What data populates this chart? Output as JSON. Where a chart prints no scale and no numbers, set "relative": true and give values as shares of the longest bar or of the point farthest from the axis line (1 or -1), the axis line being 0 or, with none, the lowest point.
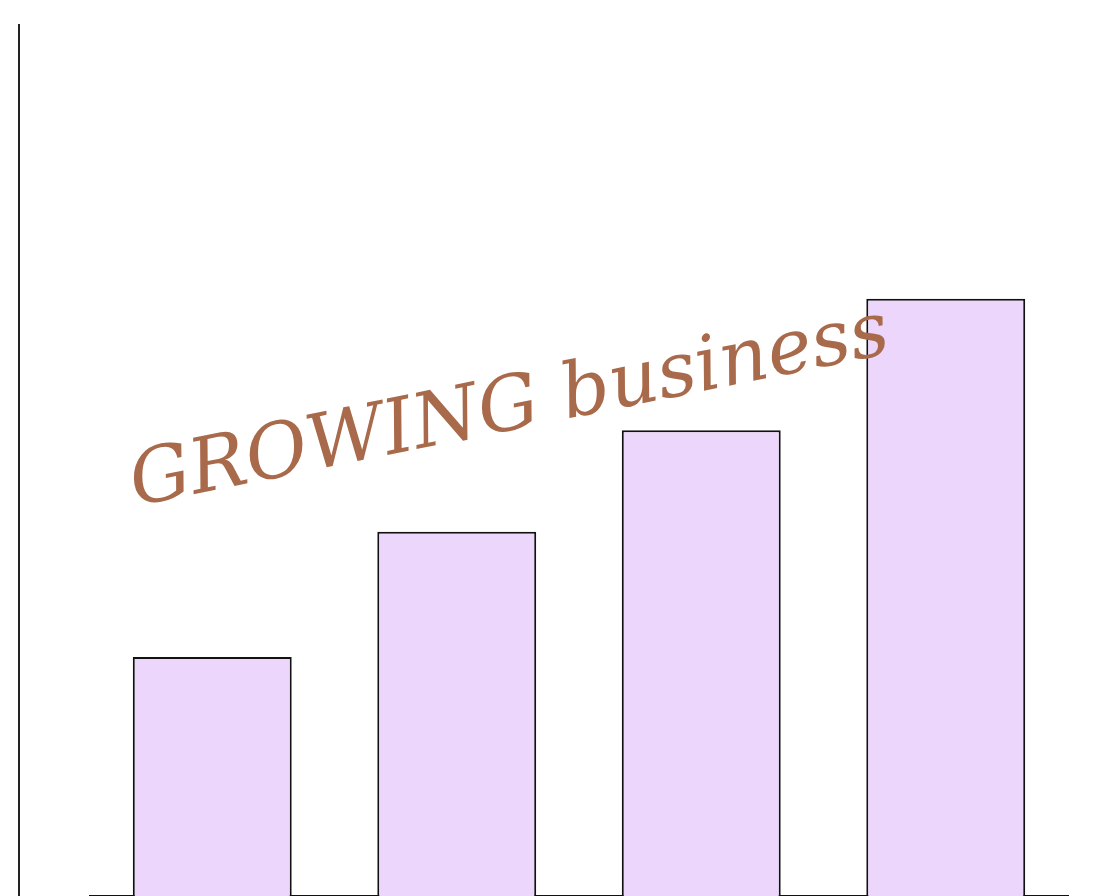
{
  "chart_data": {
    "type": "bar",
    "title": "GROWING business",
    "relative": true,
    "categories": [
      null,
      null,
      null,
      null
    ],
    "values": [
      0.4,
      0.61,
      0.78,
      1
    ],
    "color": "#ecd6fb",
    "grid": false,
    "legend": false,
    "tick_labels": false
  }
}
